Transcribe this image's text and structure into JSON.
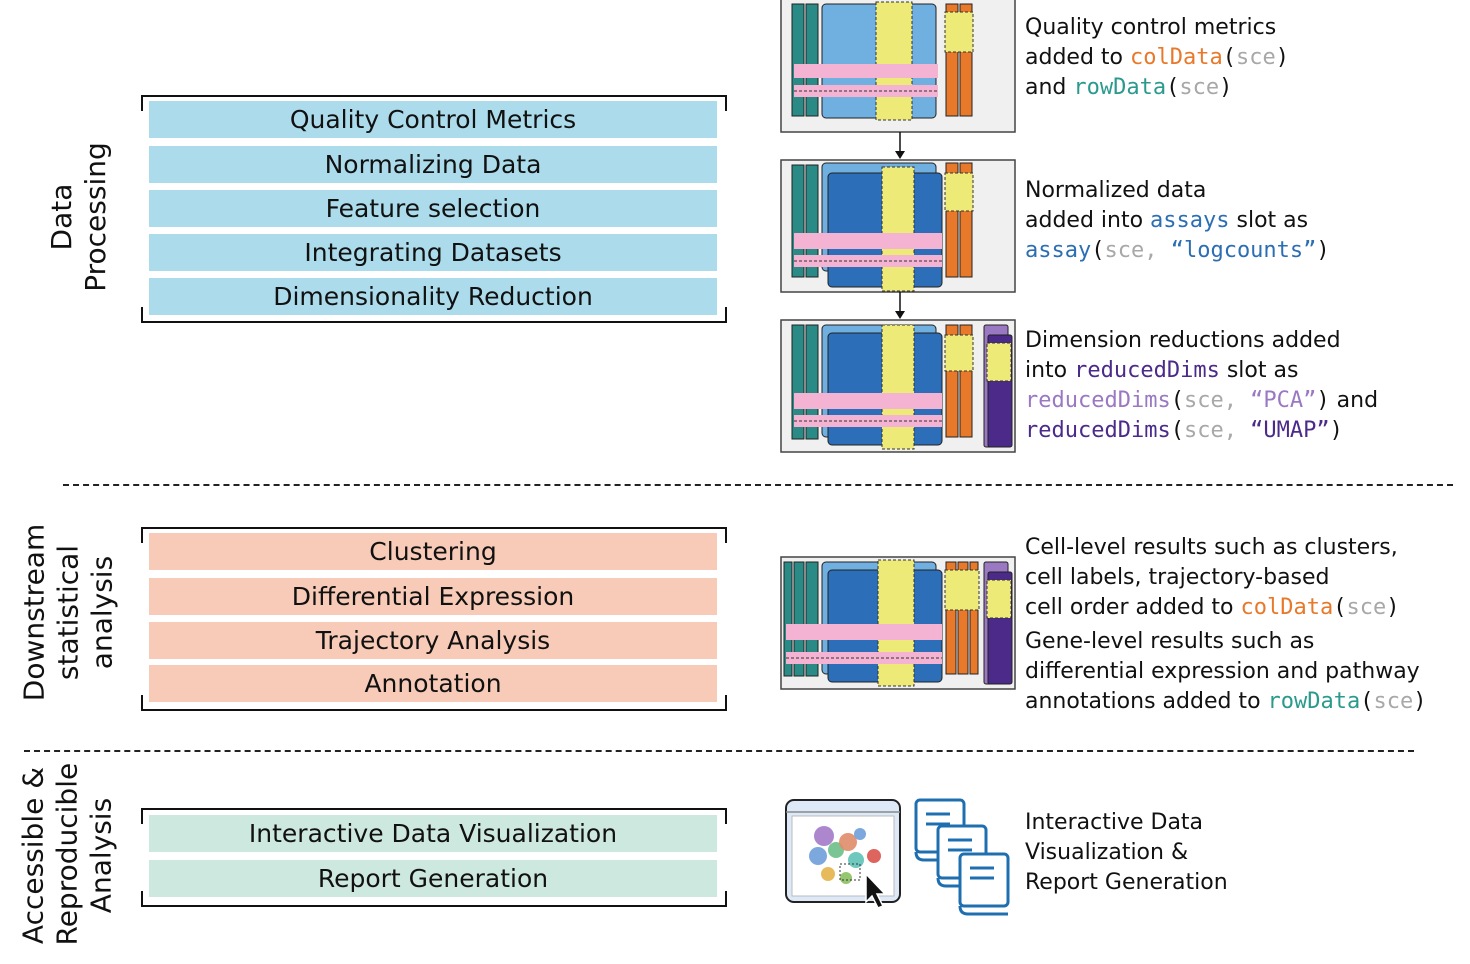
{
  "sections": [
    {
      "label": "Data\nProcessing",
      "steps": [
        "Quality Control Metrics",
        "Normalizing Data",
        "Feature selection",
        "Integrating Datasets",
        "Dimensionality Reduction"
      ],
      "color": "#acdcec"
    },
    {
      "label": "Downstream\nstatistical\nanalysis",
      "steps": [
        "Clustering",
        "Differential Expression",
        "Trajectory Analysis",
        "Annotation"
      ],
      "color": "#f7cbb8"
    },
    {
      "label": "Accessible &\nReproducible\nAnalysis",
      "steps": [
        "Interactive Data Visualization",
        "Report Generation"
      ],
      "color": "#cde8df"
    }
  ],
  "descriptions": {
    "qc": {
      "line1": "Quality control metrics",
      "line2_pre": "added to ",
      "line2_code": "colData",
      "line2_open": "(",
      "line2_arg": "sce",
      "line2_close": ")",
      "line3_pre": "and ",
      "line3_code": "rowData",
      "line3_open": "(",
      "line3_arg": "sce",
      "line3_close": ")"
    },
    "norm": {
      "line1": "Normalized data",
      "line2_pre": "added into ",
      "line2_code": "assays",
      "line2_post": " slot as",
      "line3_code": "assay",
      "line3_open": "(",
      "line3_arg": "sce,",
      "line3_str": " “logcounts”",
      "line3_close": ")"
    },
    "dimred": {
      "line1": "Dimension reductions added",
      "line2_pre": "into ",
      "line2_code": "reducedDims",
      "line2_post": " slot as",
      "line3_code": "reducedDims",
      "line3_open": "(",
      "line3_arg": "sce,",
      "line3_str": " “PCA”",
      "line3_close": ")",
      "line3_post": " and",
      "line4_code": "reducedDims",
      "line4_open": "(",
      "line4_arg": "sce,",
      "line4_str": " “UMAP”",
      "line4_close": ")"
    },
    "downstream": {
      "line1": "Cell-level results such as  clusters,",
      "line2": "cell labels, trajectory-based",
      "line3_pre": "cell order added to ",
      "line3_code": "colData",
      "line3_open": "(",
      "line3_arg": "sce",
      "line3_close": ")",
      "line4": "Gene-level results such as",
      "line5": "differential expression and pathway",
      "line6_pre": "annotations added to ",
      "line6_code": "rowData",
      "line6_open": "(",
      "line6_arg": "sce",
      "line6_close": ")"
    },
    "access": {
      "line1": "Interactive Data",
      "line2": "Visualization &",
      "line3": "Report Generation"
    }
  },
  "colors": {
    "teal": "#2a8a86",
    "lightblue": "#6fb0e0",
    "darkblue": "#2c6eb8",
    "yellow": "#eeea78",
    "pink": "#f5b3d3",
    "orange": "#e8792a",
    "purple": "#4b2a8a"
  }
}
